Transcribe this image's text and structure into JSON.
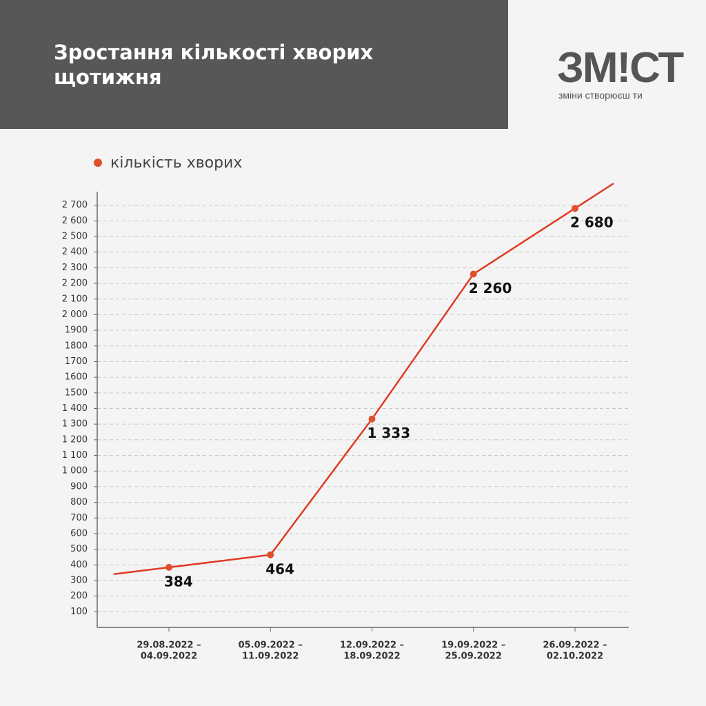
{
  "header": {
    "title": "Зростання кількості хворих щотижня"
  },
  "logo": {
    "name": "ЗМ!СТ",
    "tagline": "зміни створюєш ти"
  },
  "chart_data": {
    "type": "line",
    "categories": [
      [
        "29.08.2022 –",
        "04.09.2022"
      ],
      [
        "05.09.2022 –",
        "11.09.2022"
      ],
      [
        "12.09.2022 –",
        "18.09.2022"
      ],
      [
        "19.09.2022 –",
        "25.09.2022"
      ],
      [
        "26.09.2022 –",
        "02.10.2022"
      ]
    ],
    "series": [
      {
        "name": "кількість хворих",
        "color": "#e23a24",
        "marker_color": "#e0502a",
        "values": [
          384,
          464,
          1333,
          2260,
          2680
        ],
        "value_labels": [
          "384",
          "464",
          "1 333",
          "2 260",
          "2 680"
        ]
      }
    ],
    "ylim": [
      0,
      2800
    ],
    "yticks": [
      100,
      200,
      300,
      400,
      500,
      600,
      700,
      800,
      900,
      {
        "value": 1000,
        "label": "1 000"
      },
      {
        "value": 1100,
        "label": "1 100"
      },
      {
        "value": 1200,
        "label": "1 200"
      },
      {
        "value": 1300,
        "label": "1 300"
      },
      {
        "value": 1400,
        "label": "1 400"
      },
      1500,
      1600,
      1700,
      1800,
      1900,
      {
        "value": 2000,
        "label": "2 000"
      },
      {
        "value": 2100,
        "label": "2 100"
      },
      {
        "value": 2200,
        "label": "2 200"
      },
      {
        "value": 2300,
        "label": "2 300"
      },
      {
        "value": 2400,
        "label": "2 400"
      },
      {
        "value": 2500,
        "label": "2 500"
      },
      {
        "value": 2600,
        "label": "2 600"
      },
      {
        "value": 2700,
        "label": "2 700"
      }
    ],
    "grid": true,
    "legend": "top-left"
  }
}
